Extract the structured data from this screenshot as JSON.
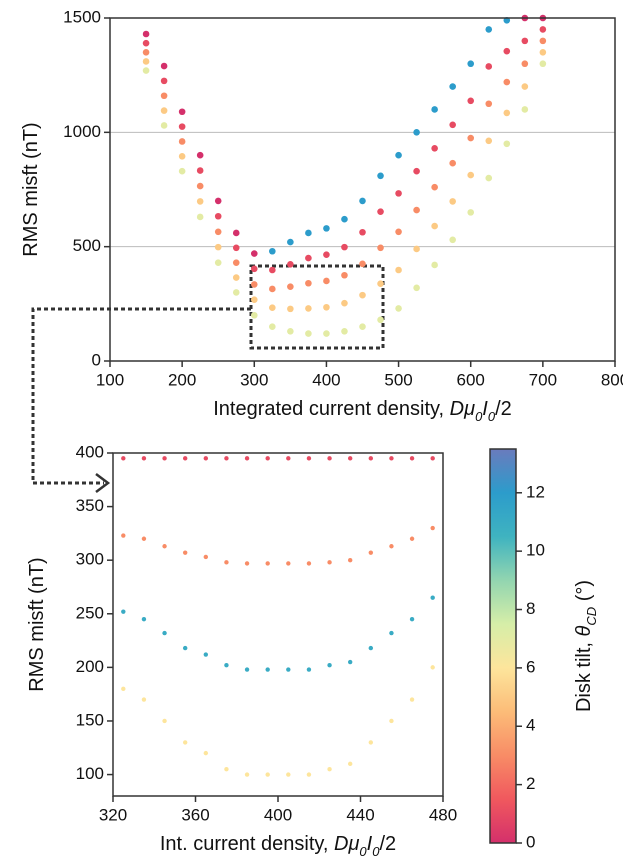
{
  "chart_data": [
    {
      "type": "scatter",
      "xlabel": [
        {
          "text": "Integrated current density, "
        },
        {
          "text": "Dμ",
          "style": "italic"
        },
        {
          "text": "0",
          "style": "sub"
        },
        {
          "text": "I",
          "style": "italic"
        },
        {
          "text": "0",
          "style": "sub"
        },
        {
          "text": "/2"
        }
      ],
      "ylabel": [
        {
          "text": "RMS misft (nT)"
        }
      ],
      "xlim": [
        100,
        800
      ],
      "ylim": [
        0,
        1500
      ],
      "xticks": [
        100,
        200,
        300,
        400,
        500,
        600,
        700,
        800
      ],
      "yticks": [
        0,
        500,
        1000,
        1500
      ],
      "grid": true,
      "x": [
        150,
        150,
        150,
        150,
        150,
        175,
        175,
        175,
        175,
        175,
        200,
        200,
        200,
        200,
        200,
        225,
        225,
        225,
        225,
        225,
        250,
        250,
        250,
        250,
        250,
        275,
        275,
        275,
        275,
        275,
        300,
        300,
        300,
        300,
        300,
        325,
        325,
        325,
        325,
        325,
        350,
        350,
        350,
        350,
        350,
        375,
        375,
        375,
        375,
        375,
        400,
        400,
        400,
        400,
        400,
        425,
        425,
        425,
        425,
        425,
        450,
        450,
        450,
        450,
        450,
        475,
        475,
        475,
        475,
        475,
        500,
        500,
        500,
        500,
        500,
        525,
        525,
        525,
        525,
        525,
        550,
        550,
        550,
        550,
        550,
        575,
        575,
        575,
        575,
        575,
        600,
        600,
        600,
        600,
        600,
        625,
        625,
        625,
        625,
        625,
        650,
        650,
        650,
        650,
        650,
        675,
        675,
        675,
        675,
        675,
        700,
        700,
        700,
        700,
        700
      ],
      "y": [
        1270,
        1310,
        1350,
        1390,
        1430,
        1030,
        1095,
        1160,
        1225,
        1290,
        830,
        895,
        960,
        1025,
        1090,
        630,
        698,
        765,
        833,
        900,
        430,
        498,
        565,
        633,
        700,
        300,
        365,
        430,
        495,
        560,
        200,
        268,
        335,
        403,
        470,
        150,
        233,
        315,
        398,
        480,
        130,
        228,
        325,
        423,
        520,
        120,
        230,
        340,
        450,
        560,
        120,
        235,
        350,
        465,
        580,
        130,
        253,
        375,
        498,
        620,
        150,
        288,
        425,
        563,
        700,
        180,
        338,
        495,
        653,
        810,
        230,
        398,
        565,
        733,
        900,
        320,
        490,
        660,
        830,
        1000,
        420,
        590,
        760,
        930,
        1100,
        530,
        698,
        865,
        1033,
        1200,
        650,
        813,
        975,
        1138,
        1300,
        800,
        963,
        1125,
        1288,
        1450,
        950,
        1085,
        1220,
        1355,
        1490,
        1100,
        1200,
        1300,
        1400,
        1500,
        1300,
        1350,
        1400,
        1450,
        1500
      ],
      "c": [
        7,
        5,
        3,
        1,
        0,
        7,
        5,
        3,
        1,
        0,
        7,
        5,
        3,
        1,
        0,
        7,
        5,
        3,
        1,
        0,
        7,
        5,
        3,
        1,
        0,
        7,
        5,
        3,
        1,
        0,
        7,
        5,
        3,
        1,
        0,
        7,
        5,
        3,
        1,
        12,
        7,
        5,
        3,
        1,
        12,
        7,
        5,
        3,
        1,
        12,
        7,
        5,
        3,
        1,
        12,
        7,
        5,
        3,
        1,
        12,
        7,
        5,
        3,
        1,
        12,
        7,
        5,
        3,
        1,
        12,
        7,
        5,
        3,
        1,
        12,
        7,
        5,
        3,
        1,
        12,
        7,
        5,
        3,
        1,
        12,
        7,
        5,
        3,
        1,
        12,
        7,
        5,
        3,
        1,
        12,
        7,
        5,
        3,
        1,
        12,
        7,
        5,
        3,
        1,
        12,
        7,
        5,
        3,
        1,
        0,
        7,
        5,
        3,
        1,
        0
      ]
    },
    {
      "type": "scatter",
      "xlabel": [
        {
          "text": "Int. current density, "
        },
        {
          "text": "Dμ",
          "style": "italic"
        },
        {
          "text": "0",
          "style": "sub"
        },
        {
          "text": "I",
          "style": "italic"
        },
        {
          "text": "0",
          "style": "sub"
        },
        {
          "text": "/2"
        }
      ],
      "ylabel": [
        {
          "text": "RMS misft (nT)"
        }
      ],
      "xlim": [
        320,
        480
      ],
      "ylim": [
        80,
        400
      ],
      "xticks": [
        320,
        360,
        400,
        440,
        480
      ],
      "yticks": [
        100,
        150,
        200,
        250,
        300,
        350,
        400
      ],
      "grid": false,
      "x": [
        325,
        325,
        325,
        325,
        335,
        335,
        335,
        335,
        345,
        345,
        345,
        345,
        355,
        355,
        355,
        355,
        365,
        365,
        365,
        365,
        375,
        375,
        375,
        375,
        385,
        385,
        385,
        385,
        395,
        395,
        395,
        395,
        405,
        405,
        405,
        405,
        415,
        415,
        415,
        415,
        425,
        425,
        425,
        425,
        435,
        435,
        435,
        435,
        445,
        445,
        445,
        445,
        455,
        455,
        455,
        455,
        465,
        465,
        465,
        465,
        475,
        475,
        475,
        475
      ],
      "y": [
        180,
        252,
        323,
        395,
        170,
        245,
        320,
        395,
        150,
        232,
        313,
        395,
        130,
        218,
        307,
        395,
        120,
        212,
        303,
        395,
        105,
        202,
        298,
        395,
        100,
        198,
        297,
        395,
        100,
        198,
        297,
        395,
        100,
        198,
        297,
        395,
        100,
        198,
        297,
        395,
        105,
        202,
        298,
        395,
        110,
        205,
        300,
        395,
        130,
        218,
        307,
        395,
        150,
        232,
        313,
        395,
        170,
        245,
        320,
        395,
        200,
        265,
        330,
        395
      ],
      "c": [
        6,
        11,
        3,
        1,
        6,
        11,
        3,
        1,
        6,
        11,
        3,
        1,
        6,
        11,
        3,
        1,
        6,
        11,
        3,
        1,
        6,
        11,
        3,
        1,
        6,
        11,
        3,
        1,
        6,
        11,
        3,
        1,
        6,
        11,
        3,
        1,
        6,
        11,
        3,
        1,
        6,
        11,
        3,
        1,
        6,
        11,
        3,
        1,
        6,
        11,
        3,
        1,
        6,
        11,
        3,
        1,
        6,
        11,
        3,
        1,
        6,
        11,
        3,
        1
      ]
    }
  ],
  "colorbar": {
    "label": [
      {
        "text": "Disk tilt, "
      },
      {
        "text": "θ",
        "style": "italic"
      },
      {
        "text": "CD",
        "style": "sub"
      },
      {
        "text": " (°)"
      }
    ],
    "clim": [
      0,
      13.5
    ],
    "ticks": [
      0,
      2,
      4,
      6,
      8,
      10,
      12
    ],
    "colormap": [
      "#d4306b",
      "#f0585e",
      "#f88c66",
      "#fcbc78",
      "#fde59c",
      "#d6eea8",
      "#92d5b0",
      "#3fb3c0",
      "#2c9ccb",
      "#6a7bbd"
    ]
  }
}
